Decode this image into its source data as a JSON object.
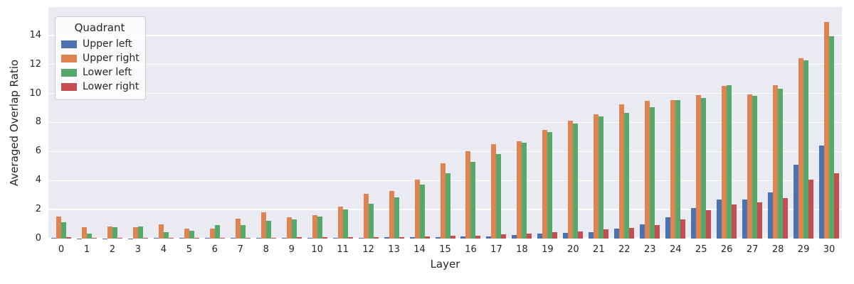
{
  "chart_data": {
    "type": "bar",
    "title": "",
    "xlabel": "Layer",
    "ylabel": "Averaged Overlap Ratio",
    "categories": [
      "0",
      "1",
      "2",
      "3",
      "4",
      "5",
      "6",
      "7",
      "8",
      "9",
      "10",
      "11",
      "12",
      "13",
      "14",
      "15",
      "16",
      "17",
      "18",
      "19",
      "20",
      "21",
      "22",
      "23",
      "24",
      "25",
      "26",
      "27",
      "28",
      "29",
      "30"
    ],
    "series": [
      {
        "name": "Upper left",
        "color": "#4C72B0",
        "values": [
          0.05,
          0.02,
          0.02,
          0.02,
          0.03,
          0.03,
          0.03,
          0.04,
          0.04,
          0.05,
          0.05,
          0.06,
          0.07,
          0.08,
          0.1,
          0.1,
          0.13,
          0.15,
          0.25,
          0.33,
          0.37,
          0.45,
          0.7,
          1.0,
          1.45,
          2.1,
          2.7,
          2.7,
          3.2,
          5.1,
          6.4
        ]
      },
      {
        "name": "Upper right",
        "color": "#DD8452",
        "values": [
          1.5,
          0.8,
          0.85,
          0.8,
          1.0,
          0.7,
          0.7,
          1.35,
          1.8,
          1.45,
          1.6,
          2.2,
          3.1,
          3.3,
          4.05,
          5.2,
          6.0,
          6.5,
          6.7,
          7.5,
          8.1,
          8.55,
          9.25,
          9.5,
          9.55,
          9.9,
          10.5,
          9.95,
          10.55,
          12.45,
          14.9
        ]
      },
      {
        "name": "Lower left",
        "color": "#55A868",
        "values": [
          1.15,
          0.35,
          0.8,
          0.85,
          0.45,
          0.55,
          0.95,
          0.95,
          1.2,
          1.3,
          1.5,
          2.0,
          2.4,
          2.85,
          3.7,
          4.5,
          5.3,
          5.8,
          6.6,
          7.35,
          7.95,
          8.4,
          8.65,
          9.05,
          9.55,
          9.7,
          10.55,
          9.85,
          10.3,
          12.3,
          13.95
        ]
      },
      {
        "name": "Lower right",
        "color": "#C44E52",
        "values": [
          0.1,
          0.03,
          0.04,
          0.04,
          0.05,
          0.05,
          0.05,
          0.06,
          0.07,
          0.08,
          0.08,
          0.09,
          0.1,
          0.12,
          0.15,
          0.18,
          0.2,
          0.3,
          0.35,
          0.46,
          0.5,
          0.65,
          0.72,
          0.95,
          1.3,
          1.95,
          2.35,
          2.5,
          2.8,
          4.05,
          4.5
        ]
      }
    ],
    "legend": {
      "title": "Quadrant",
      "position": "upper left"
    },
    "ylim": [
      0,
      15.95
    ],
    "yticks": [
      0,
      2,
      4,
      6,
      8,
      10,
      12,
      14
    ],
    "grid": true,
    "style": {
      "plot_background": "#EAEAF2",
      "grid_color": "#ffffff",
      "text_color": "#262626",
      "figure_background": "#ffffff"
    }
  }
}
